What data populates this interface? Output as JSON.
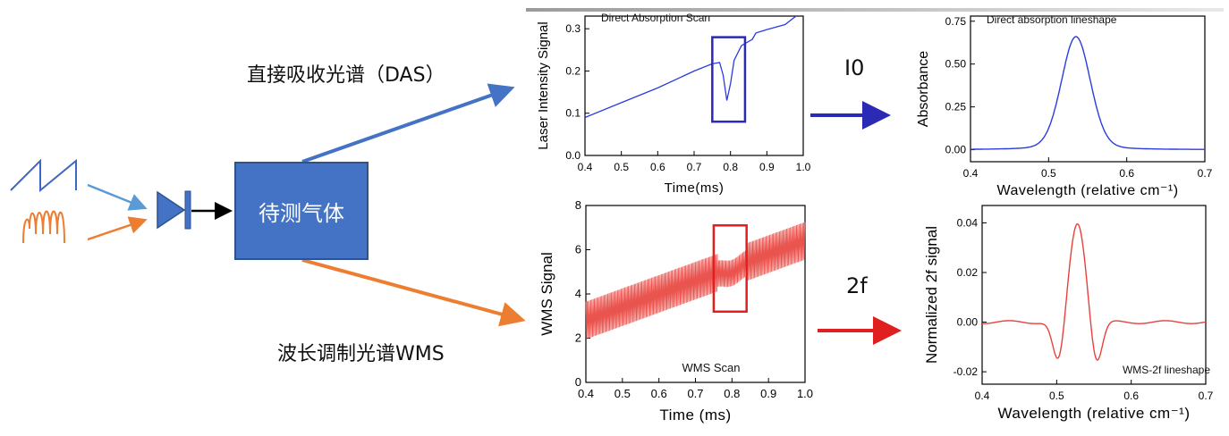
{
  "labels": {
    "das": "直接吸收光谱（DAS）",
    "wms": "波长调制光谱WMS",
    "gas_box": "待测气体",
    "i0": "I0",
    "two_f": "2f"
  },
  "colors": {
    "blue": "#3d67c2",
    "orange": "#ed7d31",
    "box": "#4472c4",
    "trace_blue": "#2b3be0",
    "trace_red": "#e8413c",
    "rect_blue": "#2a2ab5",
    "rect_red": "#e02020"
  },
  "chart_data": [
    {
      "id": "das-scan",
      "type": "line",
      "title": "Direct Absorption Scan",
      "xlabel": "Time(ms)",
      "ylabel": "Laser Intensity Signal",
      "xlim": [
        0.4,
        1.0
      ],
      "ylim": [
        0.0,
        0.33
      ],
      "xticks": [
        "0.4",
        "0.5",
        "0.6",
        "0.7",
        "0.8",
        "0.9",
        "1.0"
      ],
      "yticks": [
        "0.0",
        "0.1",
        "0.2",
        "0.3"
      ],
      "x": [
        0.4,
        0.5,
        0.6,
        0.7,
        0.75,
        0.77,
        0.78,
        0.79,
        0.8,
        0.81,
        0.83,
        0.86,
        0.87,
        0.9,
        0.95,
        0.98
      ],
      "y": [
        0.09,
        0.125,
        0.16,
        0.2,
        0.217,
        0.22,
        0.19,
        0.13,
        0.17,
        0.225,
        0.26,
        0.275,
        0.29,
        0.298,
        0.31,
        0.33
      ],
      "highlight_x": [
        0.75,
        0.84
      ],
      "highlight_y": [
        0.08,
        0.28
      ]
    },
    {
      "id": "wms-scan",
      "type": "line",
      "title": "WMS Scan",
      "xlabel": "Time (ms)",
      "ylabel": "WMS Signal",
      "xlim": [
        0.4,
        1.0
      ],
      "ylim": [
        0,
        8
      ],
      "xticks": [
        "0.4",
        "0.5",
        "0.6",
        "0.7",
        "0.8",
        "0.9",
        "1.0"
      ],
      "yticks": [
        "0",
        "2",
        "4",
        "6",
        "8"
      ],
      "x": [
        0.4,
        1.0
      ],
      "y_center": [
        2.8,
        6.4
      ],
      "modulation_amplitude": 0.85,
      "highlight_x": [
        0.75,
        0.84
      ],
      "highlight_y": [
        3.2,
        7.1
      ]
    },
    {
      "id": "das-lineshape",
      "type": "line",
      "title": "Direct absorption lineshape",
      "xlabel": "Wavelength (relative cm⁻¹)",
      "ylabel": "Absorbance",
      "xlim": [
        0.4,
        0.7
      ],
      "ylim": [
        -0.07,
        0.78
      ],
      "xticks": [
        "0.4",
        "0.5",
        "0.6",
        "0.7"
      ],
      "yticks": [
        "0.00",
        "0.25",
        "0.50",
        "0.75"
      ],
      "peak_center": 0.535,
      "peak_height": 0.66,
      "peak_hwhm": 0.022
    },
    {
      "id": "wms-2f-lineshape",
      "type": "line",
      "title": "WMS-2f lineshape",
      "xlabel": "Wavelength (relative cm⁻¹)",
      "ylabel": "Normalized 2f signal",
      "xlim": [
        0.4,
        0.7
      ],
      "ylim": [
        -0.025,
        0.047
      ],
      "xticks": [
        "0.4",
        "0.5",
        "0.6",
        "0.7"
      ],
      "yticks": [
        "-0.02",
        "0.00",
        "0.02",
        "0.04"
      ],
      "peak_center": 0.528,
      "peak_height": 0.04,
      "side_lobe": -0.018
    }
  ]
}
